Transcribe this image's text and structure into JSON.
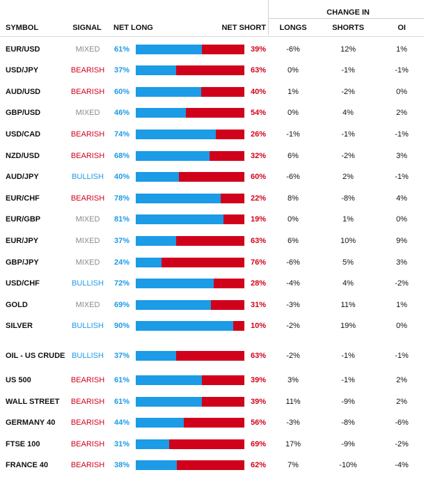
{
  "header": {
    "symbol": "SYMBOL",
    "signal": "SIGNAL",
    "net_long": "NET LONG",
    "net_short": "NET SHORT",
    "change_in": "CHANGE IN",
    "longs": "LONGS",
    "shorts": "SHORTS",
    "oi": "OI"
  },
  "colors": {
    "long": "#1c9be6",
    "short": "#d0021b",
    "mixed": "#8a8a8a"
  },
  "rows": [
    {
      "symbol": "EUR/USD",
      "signal": "MIXED",
      "net_long": "61%",
      "net_short": "39%",
      "longs": "-6%",
      "shorts": "12%",
      "oi": "1%"
    },
    {
      "symbol": "USD/JPY",
      "signal": "BEARISH",
      "net_long": "37%",
      "net_short": "63%",
      "longs": "0%",
      "shorts": "-1%",
      "oi": "-1%"
    },
    {
      "symbol": "AUD/USD",
      "signal": "BEARISH",
      "net_long": "60%",
      "net_short": "40%",
      "longs": "1%",
      "shorts": "-2%",
      "oi": "0%"
    },
    {
      "symbol": "GBP/USD",
      "signal": "MIXED",
      "net_long": "46%",
      "net_short": "54%",
      "longs": "0%",
      "shorts": "4%",
      "oi": "2%"
    },
    {
      "symbol": "USD/CAD",
      "signal": "BEARISH",
      "net_long": "74%",
      "net_short": "26%",
      "longs": "-1%",
      "shorts": "-1%",
      "oi": "-1%"
    },
    {
      "symbol": "NZD/USD",
      "signal": "BEARISH",
      "net_long": "68%",
      "net_short": "32%",
      "longs": "6%",
      "shorts": "-2%",
      "oi": "3%"
    },
    {
      "symbol": "AUD/JPY",
      "signal": "BULLISH",
      "net_long": "40%",
      "net_short": "60%",
      "longs": "-6%",
      "shorts": "2%",
      "oi": "-1%"
    },
    {
      "symbol": "EUR/CHF",
      "signal": "BEARISH",
      "net_long": "78%",
      "net_short": "22%",
      "longs": "8%",
      "shorts": "-8%",
      "oi": "4%"
    },
    {
      "symbol": "EUR/GBP",
      "signal": "MIXED",
      "net_long": "81%",
      "net_short": "19%",
      "longs": "0%",
      "shorts": "1%",
      "oi": "0%"
    },
    {
      "symbol": "EUR/JPY",
      "signal": "MIXED",
      "net_long": "37%",
      "net_short": "63%",
      "longs": "6%",
      "shorts": "10%",
      "oi": "9%"
    },
    {
      "symbol": "GBP/JPY",
      "signal": "MIXED",
      "net_long": "24%",
      "net_short": "76%",
      "longs": "-6%",
      "shorts": "5%",
      "oi": "3%"
    },
    {
      "symbol": "USD/CHF",
      "signal": "BULLISH",
      "net_long": "72%",
      "net_short": "28%",
      "longs": "-4%",
      "shorts": "4%",
      "oi": "-2%"
    },
    {
      "symbol": "GOLD",
      "signal": "MIXED",
      "net_long": "69%",
      "net_short": "31%",
      "longs": "-3%",
      "shorts": "11%",
      "oi": "1%"
    },
    {
      "symbol": "SILVER",
      "signal": "BULLISH",
      "net_long": "90%",
      "net_short": "10%",
      "longs": "-2%",
      "shorts": "19%",
      "oi": "0%"
    },
    {
      "symbol": "OIL - US CRUDE",
      "signal": "BULLISH",
      "net_long": "37%",
      "net_short": "63%",
      "longs": "-2%",
      "shorts": "-1%",
      "oi": "-1%"
    },
    {
      "symbol": "US 500",
      "signal": "BEARISH",
      "net_long": "61%",
      "net_short": "39%",
      "longs": "3%",
      "shorts": "-1%",
      "oi": "2%"
    },
    {
      "symbol": "WALL STREET",
      "signal": "BEARISH",
      "net_long": "61%",
      "net_short": "39%",
      "longs": "11%",
      "shorts": "-9%",
      "oi": "2%"
    },
    {
      "symbol": "GERMANY 40",
      "signal": "BEARISH",
      "net_long": "44%",
      "net_short": "56%",
      "longs": "-3%",
      "shorts": "-8%",
      "oi": "-6%"
    },
    {
      "symbol": "FTSE 100",
      "signal": "BEARISH",
      "net_long": "31%",
      "net_short": "69%",
      "longs": "17%",
      "shorts": "-9%",
      "oi": "-2%"
    },
    {
      "symbol": "FRANCE 40",
      "signal": "BEARISH",
      "net_long": "38%",
      "net_short": "62%",
      "longs": "7%",
      "shorts": "-10%",
      "oi": "-4%"
    }
  ]
}
